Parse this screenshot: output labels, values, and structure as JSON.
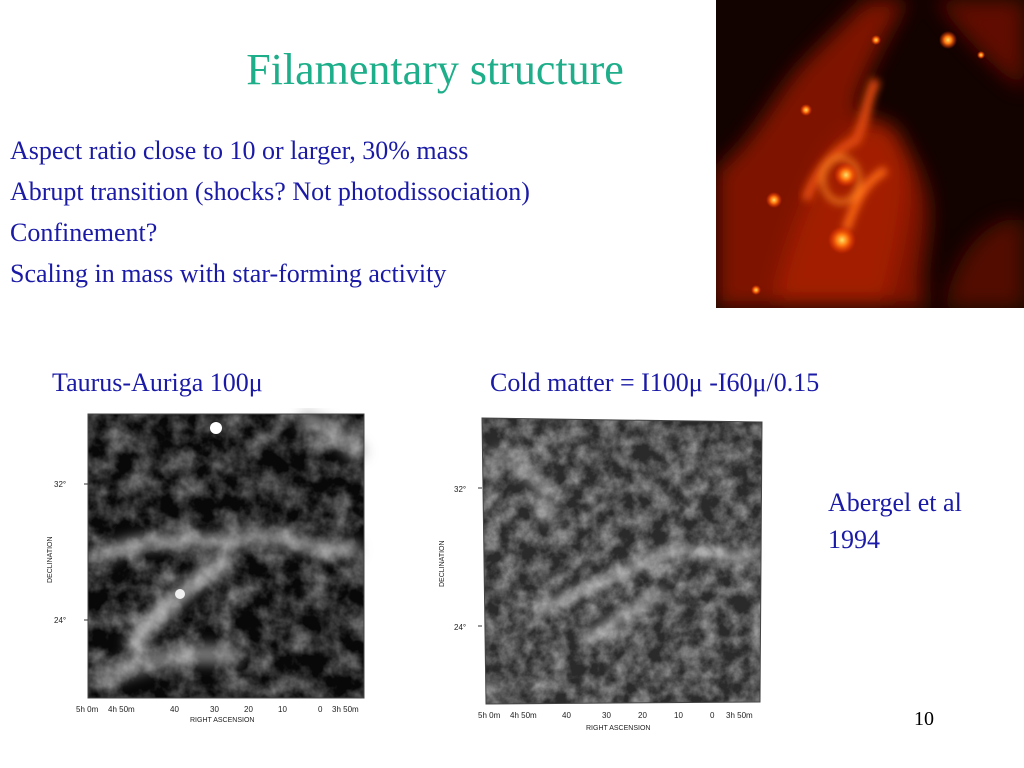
{
  "slide": {
    "title": "Filamentary structure",
    "bullets": [
      "Aspect ratio close to 10 or larger, 30% mass",
      "Abrupt transition (shocks? Not photodissociation)",
      "Confinement?",
      "Scaling in mass with star-forming activity"
    ],
    "page_number": "10"
  },
  "left_plot": {
    "caption": "Taurus-Auriga  100μ",
    "ylabel": "DECLINATION",
    "xlabel": "RIGHT ASCENSION",
    "y_ticks": [
      "32°",
      "24°"
    ],
    "x_ticks": [
      "5h 0m",
      "4h 50m",
      "40",
      "30",
      "20",
      "10",
      "0",
      "3h 50m"
    ]
  },
  "right_plot": {
    "caption": "Cold matter = I100μ -I60μ/0.15",
    "ylabel": "DECLINATION",
    "xlabel": "RIGHT ASCENSION",
    "y_ticks": [
      "32°",
      "24°"
    ],
    "x_ticks": [
      "5h 0m",
      "4h 50m",
      "40",
      "30",
      "20",
      "10",
      "0",
      "3h 50m"
    ]
  },
  "credit": {
    "line1": "Abergel et al",
    "line2": "1994"
  },
  "colors": {
    "title": "#1fae8a",
    "text": "#1a1aa6"
  }
}
